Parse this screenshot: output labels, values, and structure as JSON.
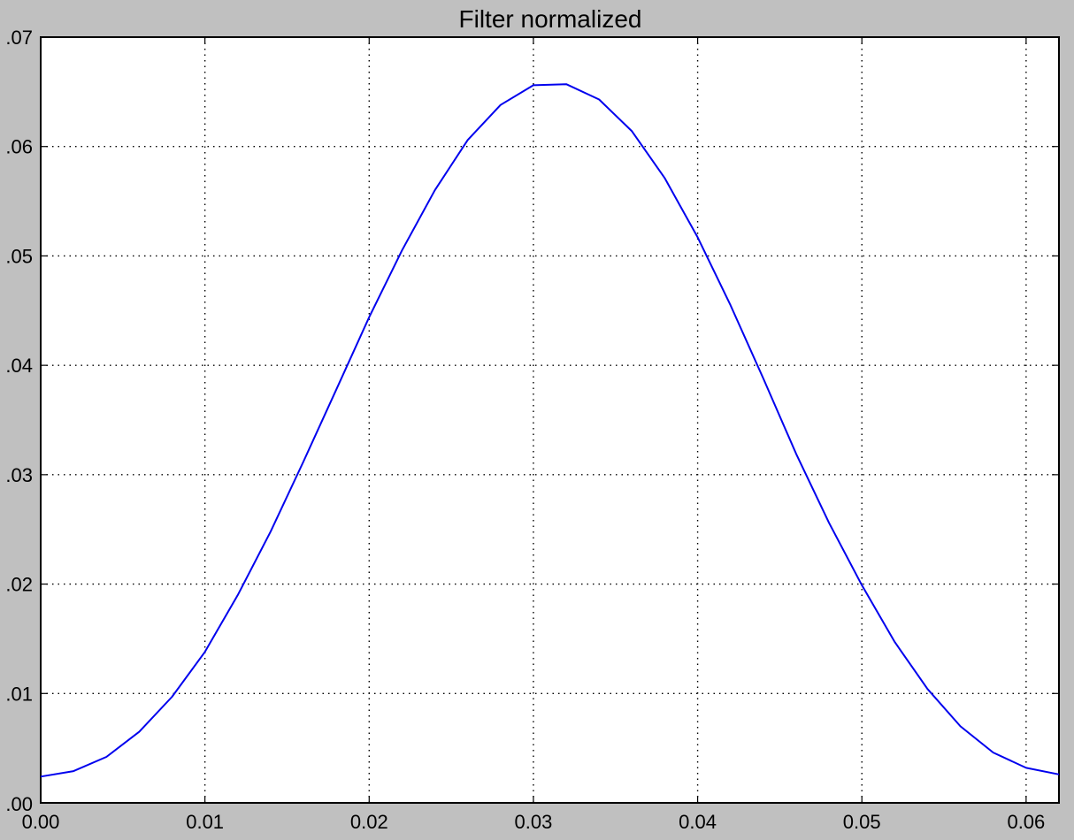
{
  "chart_data": {
    "type": "line",
    "title": "Filter normalized",
    "xlabel": "",
    "ylabel": "",
    "xlim": [
      0.0,
      0.062
    ],
    "ylim": [
      0.0,
      0.07
    ],
    "grid": true,
    "x_ticks": [
      "0.00",
      "0.01",
      "0.02",
      "0.03",
      "0.04",
      "0.05",
      "0.06"
    ],
    "x_tick_values": [
      0.0,
      0.01,
      0.02,
      0.03,
      0.04,
      0.05,
      0.06
    ],
    "y_ticks": [
      ".00",
      ".01",
      ".02",
      ".03",
      ".04",
      ".05",
      ".06",
      ".07"
    ],
    "y_tick_values": [
      0.0,
      0.01,
      0.02,
      0.03,
      0.04,
      0.05,
      0.06,
      0.07
    ],
    "series": [
      {
        "color": "#0000ee",
        "x": [
          0.0,
          0.002,
          0.004,
          0.006,
          0.008,
          0.01,
          0.012,
          0.014,
          0.016,
          0.018,
          0.02,
          0.022,
          0.024,
          0.026,
          0.028,
          0.03,
          0.032,
          0.034,
          0.036,
          0.038,
          0.04,
          0.042,
          0.044,
          0.046,
          0.048,
          0.05,
          0.052,
          0.054,
          0.056,
          0.058,
          0.06,
          0.062
        ],
        "y": [
          0.0024,
          0.0029,
          0.0042,
          0.0065,
          0.0097,
          0.0138,
          0.019,
          0.0248,
          0.0312,
          0.0378,
          0.0444,
          0.0505,
          0.056,
          0.0606,
          0.0638,
          0.0656,
          0.0657,
          0.0643,
          0.0614,
          0.0571,
          0.0517,
          0.0455,
          0.0388,
          0.0319,
          0.0256,
          0.0199,
          0.0147,
          0.0104,
          0.007,
          0.0046,
          0.0032,
          0.0026
        ]
      }
    ]
  }
}
